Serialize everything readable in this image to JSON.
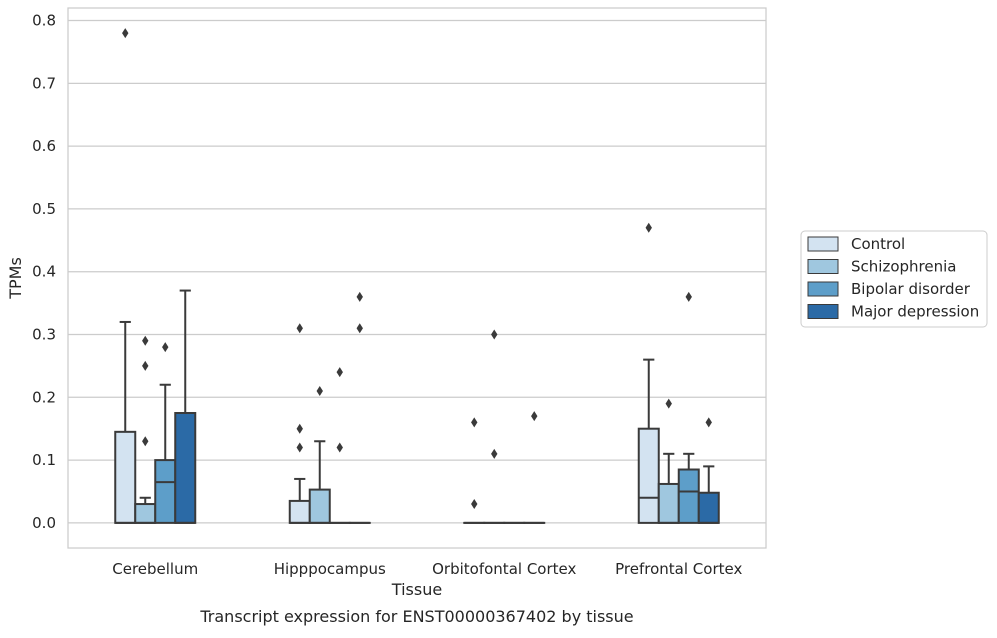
{
  "chart_data": {
    "type": "box",
    "title": "",
    "xlabel": "Tissue",
    "ylabel": "TPMs",
    "caption": "Transcript expression for ENST00000367402 by tissue",
    "ylim": [
      -0.04,
      0.82
    ],
    "yticks": [
      "0.0",
      "0.1",
      "0.2",
      "0.3",
      "0.4",
      "0.5",
      "0.6",
      "0.7",
      "0.8"
    ],
    "grid": "horizontal",
    "legend_position": "right",
    "categories": [
      "Cerebellum",
      "Hipppocampus",
      "Orbitofontal Cortex",
      "Prefrontal Cortex"
    ],
    "series": [
      {
        "name": "Control",
        "color": "#d3e3f1",
        "boxes": [
          {
            "q1": 0.0,
            "median": 0.0,
            "q3": 0.145,
            "whisker_low": 0.0,
            "whisker_high": 0.32,
            "outliers": [
              0.78
            ]
          },
          {
            "q1": 0.0,
            "median": 0.0,
            "q3": 0.035,
            "whisker_low": 0.0,
            "whisker_high": 0.07,
            "outliers": [
              0.12,
              0.15,
              0.31
            ]
          },
          {
            "q1": 0.0,
            "median": 0.0,
            "q3": 0.0,
            "whisker_low": 0.0,
            "whisker_high": 0.0,
            "outliers": [
              0.03,
              0.16
            ]
          },
          {
            "q1": 0.0,
            "median": 0.04,
            "q3": 0.15,
            "whisker_low": 0.0,
            "whisker_high": 0.26,
            "outliers": [
              0.47
            ]
          }
        ]
      },
      {
        "name": "Schizophrenia",
        "color": "#9fc7df",
        "boxes": [
          {
            "q1": 0.0,
            "median": 0.0,
            "q3": 0.03,
            "whisker_low": 0.0,
            "whisker_high": 0.04,
            "outliers": [
              0.13,
              0.25,
              0.29
            ]
          },
          {
            "q1": 0.0,
            "median": 0.0,
            "q3": 0.053,
            "whisker_low": 0.0,
            "whisker_high": 0.13,
            "outliers": [
              0.21
            ]
          },
          {
            "q1": 0.0,
            "median": 0.0,
            "q3": 0.0,
            "whisker_low": 0.0,
            "whisker_high": 0.0,
            "outliers": [
              0.11,
              0.3
            ]
          },
          {
            "q1": 0.0,
            "median": 0.0,
            "q3": 0.062,
            "whisker_low": 0.0,
            "whisker_high": 0.11,
            "outliers": [
              0.19
            ]
          }
        ]
      },
      {
        "name": "Bipolar disorder",
        "color": "#5d9ec9",
        "boxes": [
          {
            "q1": 0.0,
            "median": 0.065,
            "q3": 0.1,
            "whisker_low": 0.0,
            "whisker_high": 0.22,
            "outliers": [
              0.28
            ]
          },
          {
            "q1": 0.0,
            "median": 0.0,
            "q3": 0.0,
            "whisker_low": 0.0,
            "whisker_high": 0.0,
            "outliers": [
              0.12,
              0.24
            ]
          },
          {
            "q1": 0.0,
            "median": 0.0,
            "q3": 0.0,
            "whisker_low": 0.0,
            "whisker_high": 0.0,
            "outliers": []
          },
          {
            "q1": 0.0,
            "median": 0.05,
            "q3": 0.085,
            "whisker_low": 0.0,
            "whisker_high": 0.11,
            "outliers": [
              0.36
            ]
          }
        ]
      },
      {
        "name": "Major depression",
        "color": "#2b6aa6",
        "boxes": [
          {
            "q1": 0.0,
            "median": 0.0,
            "q3": 0.175,
            "whisker_low": 0.0,
            "whisker_high": 0.37,
            "outliers": []
          },
          {
            "q1": 0.0,
            "median": 0.0,
            "q3": 0.0,
            "whisker_low": 0.0,
            "whisker_high": 0.0,
            "outliers": [
              0.31,
              0.36
            ]
          },
          {
            "q1": 0.0,
            "median": 0.0,
            "q3": 0.0,
            "whisker_low": 0.0,
            "whisker_high": 0.0,
            "outliers": [
              0.17
            ]
          },
          {
            "q1": 0.0,
            "median": 0.0,
            "q3": 0.048,
            "whisker_low": 0.0,
            "whisker_high": 0.09,
            "outliers": [
              0.16
            ]
          }
        ]
      }
    ]
  }
}
